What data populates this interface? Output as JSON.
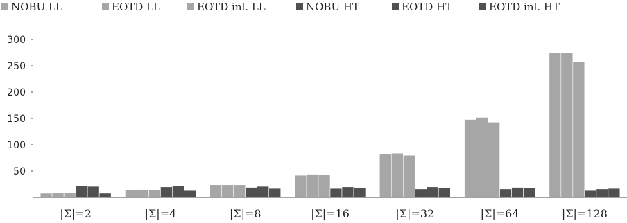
{
  "chart_data": {
    "type": "bar",
    "title": "",
    "xlabel": "",
    "ylabel": "",
    "categories": [
      "|Σ|=2",
      "|Σ|=4",
      "|Σ|=8",
      "|Σ|=16",
      "|Σ|=32",
      "|Σ|=64",
      "|Σ|=128"
    ],
    "series": [
      {
        "name": "NOBU LL",
        "color": "#a6a6a6",
        "values": [
          8,
          14,
          24,
          42,
          82,
          148,
          275
        ]
      },
      {
        "name": "EOTD LL",
        "color": "#a6a6a6",
        "values": [
          9,
          15,
          24,
          44,
          84,
          152,
          275
        ]
      },
      {
        "name": "EOTD inl. LL",
        "color": "#a6a6a6",
        "values": [
          9,
          14,
          24,
          43,
          80,
          143,
          258
        ]
      },
      {
        "name": "NOBU HT",
        "color": "#505050",
        "values": [
          22,
          20,
          19,
          17,
          16,
          16,
          13
        ]
      },
      {
        "name": "EOTD HT",
        "color": "#505050",
        "values": [
          21,
          22,
          21,
          20,
          20,
          19,
          16
        ]
      },
      {
        "name": "EOTD inl. HT",
        "color": "#505050",
        "values": [
          8,
          13,
          17,
          18,
          18,
          18,
          17
        ]
      }
    ],
    "ylim": [
      0,
      300
    ],
    "yticks": [
      50,
      100,
      150,
      200,
      250,
      300
    ],
    "grid": false,
    "legend_position": "top"
  }
}
